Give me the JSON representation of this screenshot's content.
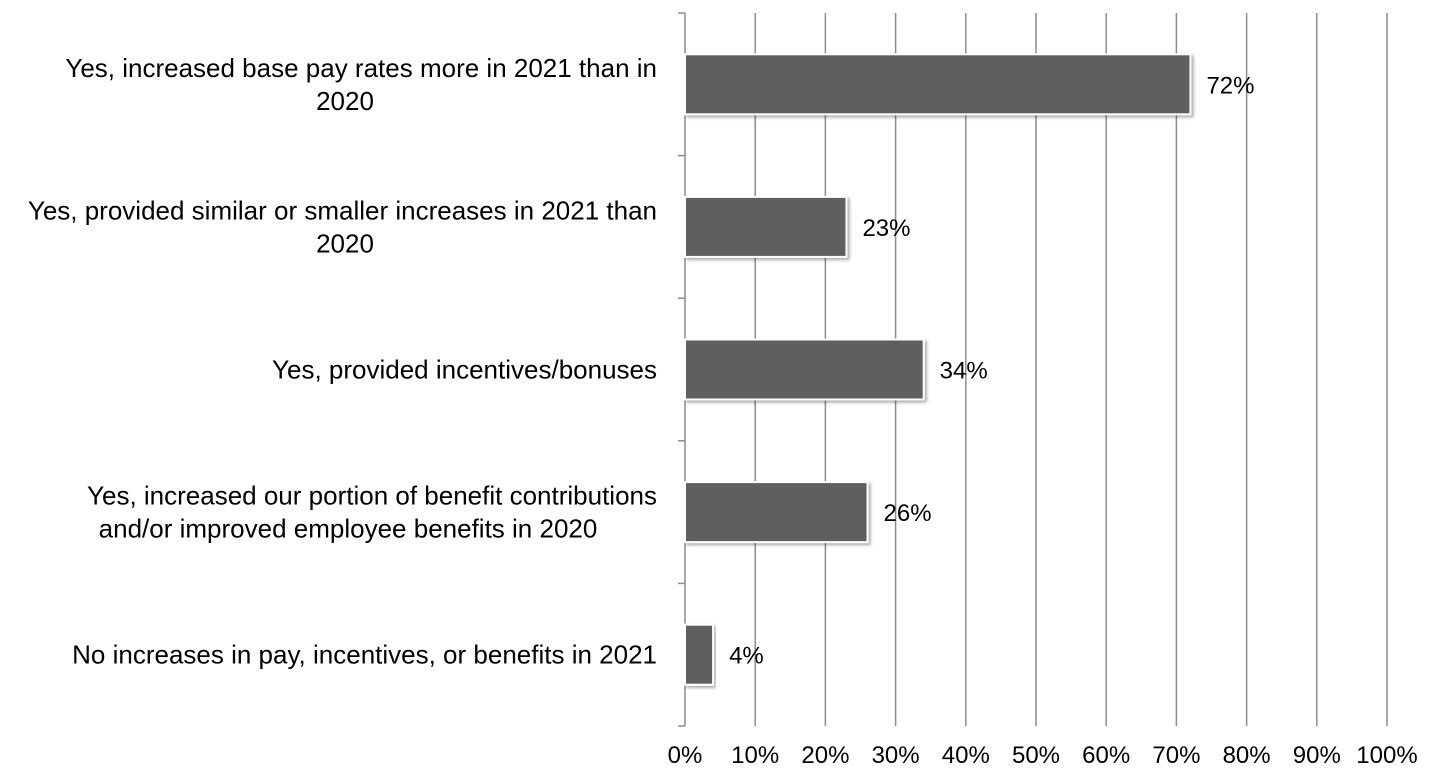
{
  "chart_data": {
    "type": "bar",
    "orientation": "horizontal",
    "title": "",
    "xlabel": "",
    "ylabel": "",
    "categories": [
      [
        "Yes, increased base pay rates more in 2021 than in",
        "2020"
      ],
      [
        "Yes, provided similar or smaller increases in 2021 than",
        "2020"
      ],
      [
        "Yes, provided incentives/bonuses"
      ],
      [
        "Yes, increased our portion of benefit contributions",
        "and/or improved employee benefits in 2020"
      ],
      [
        "No increases in pay, incentives, or benefits in 2021"
      ]
    ],
    "values": [
      72,
      23,
      34,
      26,
      4
    ],
    "data_labels": [
      "72%",
      "23%",
      "34%",
      "26%",
      "4%"
    ],
    "xlim": [
      0,
      100
    ],
    "xticks": [
      0,
      10,
      20,
      30,
      40,
      50,
      60,
      70,
      80,
      90,
      100
    ],
    "xtick_labels": [
      "0%",
      "10%",
      "20%",
      "30%",
      "40%",
      "50%",
      "60%",
      "70%",
      "80%",
      "90%",
      "100%"
    ],
    "grid": true,
    "legend": "none",
    "colors": {
      "bar": "#5f5f5f",
      "grid": "#8c8c8c",
      "text": "#000000"
    }
  }
}
